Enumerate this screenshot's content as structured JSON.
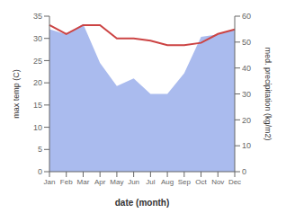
{
  "chart_data": {
    "type": "line",
    "categories": [
      "Jan",
      "Feb",
      "Mar",
      "Apr",
      "May",
      "Jun",
      "Jul",
      "Aug",
      "Sep",
      "Oct",
      "Nov",
      "Dec"
    ],
    "series": [
      {
        "type": "area",
        "color": "#aabbee",
        "axis": "y2",
        "values": [
          55,
          53,
          57,
          42,
          33,
          36,
          30,
          30,
          38,
          52,
          53,
          55
        ]
      },
      {
        "type": "line",
        "color": "#cc4444",
        "values": [
          33,
          31,
          33,
          33,
          30,
          30,
          29.5,
          28.5,
          28.5,
          29,
          31,
          32
        ]
      }
    ],
    "xlabel": "date (month)",
    "ylabel": "max temp (C)",
    "y2label": "med. precipitation (kg/m2)",
    "ylim": [
      0,
      35
    ],
    "yticks": [
      0,
      5,
      10,
      15,
      20,
      25,
      30,
      35
    ],
    "y2lim": [
      0,
      60
    ],
    "y2ticks": [
      0,
      10,
      20,
      30,
      40,
      50,
      60
    ]
  }
}
